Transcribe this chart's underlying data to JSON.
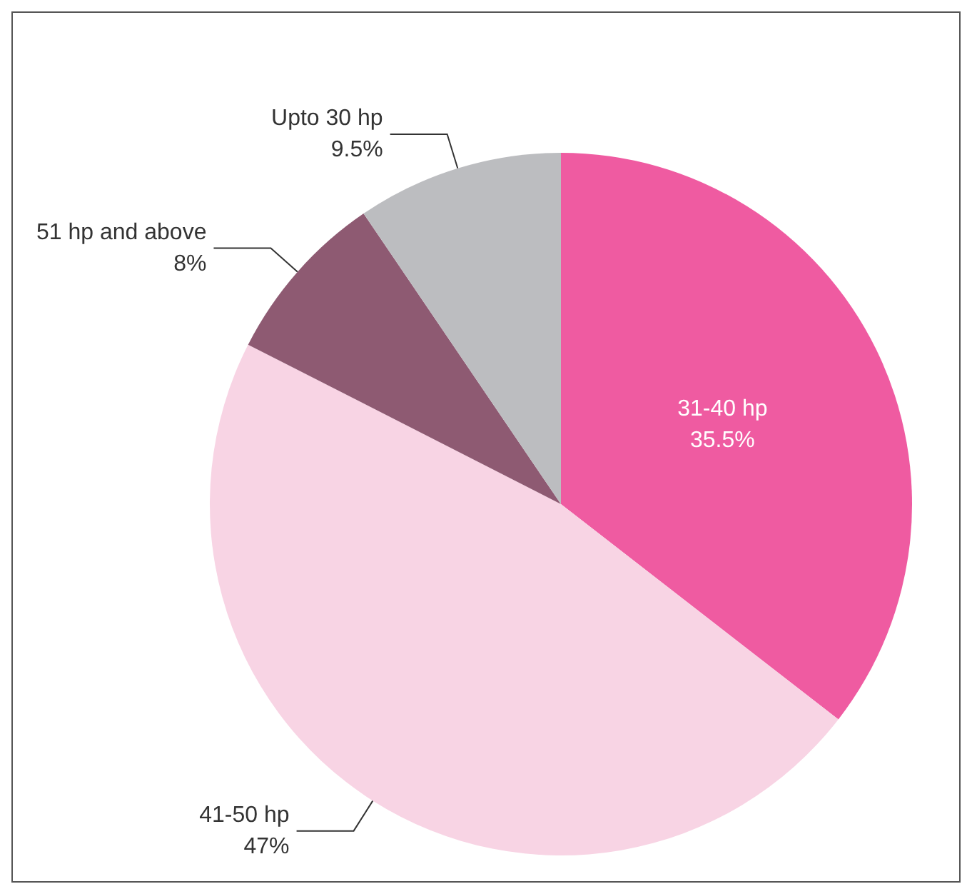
{
  "chart_data": {
    "type": "pie",
    "categories": [
      "31-40 hp",
      "41-50 hp",
      "51 hp and above",
      "Upto 30 hp"
    ],
    "values": [
      35.5,
      47,
      8,
      9.5
    ],
    "value_labels": [
      "35.5%",
      "47%",
      "8%",
      "9.5%"
    ],
    "colors": [
      "#ef5ba1",
      "#f8d4e4",
      "#8e5a72",
      "#bcbdc0"
    ],
    "legend": false
  }
}
